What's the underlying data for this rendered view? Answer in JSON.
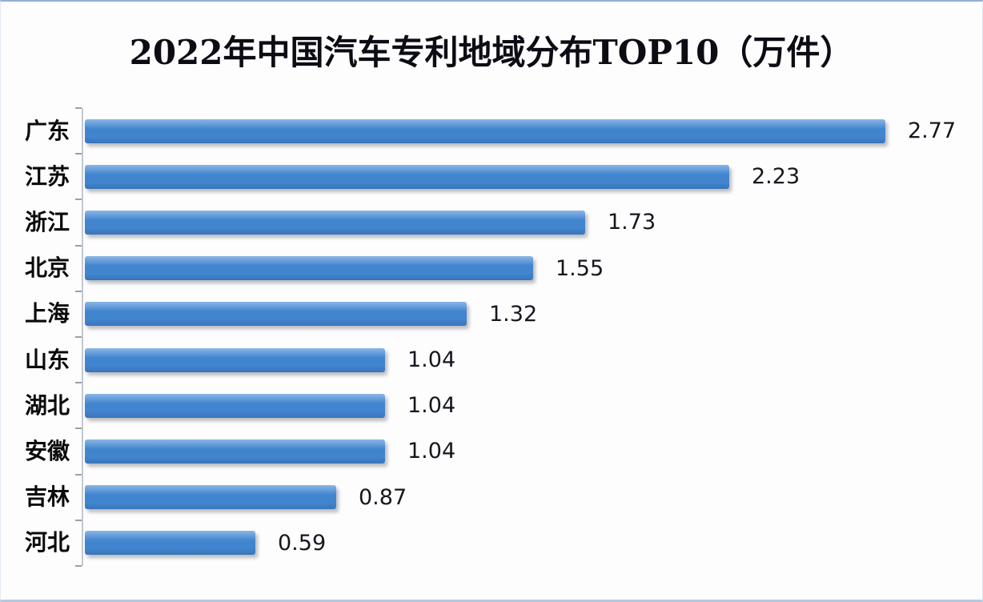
{
  "page": {
    "background": "#fdfdfe",
    "top_edge_color": "#93aed2",
    "bottom_edge_color": "#b6c8e2"
  },
  "chart_data": {
    "type": "bar",
    "orientation": "horizontal",
    "title": "2022年中国汽车专利地域分布TOP10（万件）",
    "unit": "万件",
    "categories": [
      "广东",
      "江苏",
      "浙江",
      "北京",
      "上海",
      "山东",
      "湖北",
      "安徽",
      "吉林",
      "河北"
    ],
    "values": [
      2.77,
      2.23,
      1.73,
      1.55,
      1.32,
      1.04,
      1.04,
      1.04,
      0.87,
      0.59
    ],
    "value_labels": [
      "2.77",
      "2.23",
      "1.73",
      "1.55",
      "1.32",
      "1.04",
      "1.04",
      "1.04",
      "0.87",
      "0.59"
    ],
    "xlabel": "",
    "ylabel": "",
    "xlim": [
      0,
      3.0
    ],
    "grid": false,
    "legend": false,
    "value_label_position": "right-of-bar",
    "bar_color": "#4285cf",
    "bar_gradient_top": "#8ab6e6",
    "bar_gradient_mid": "#4285cf",
    "bar_gradient_bottom": "#3a74ba",
    "axis_color": "#c3c8cf",
    "tick_color": "#9aa0a8",
    "title_color": "#0c0c14",
    "label_color": "#0a0a0a"
  }
}
